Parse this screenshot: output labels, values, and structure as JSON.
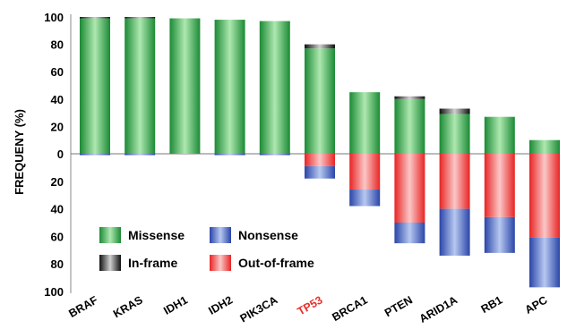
{
  "chart_data": {
    "type": "bar",
    "ylabel": "FREQUENY (%)",
    "y_tick_labels_top": [
      "100",
      "80",
      "60",
      "40",
      "20",
      "0"
    ],
    "y_tick_labels_bottom": [
      "20",
      "40",
      "60",
      "80",
      "100"
    ],
    "ylim_top": [
      0,
      100
    ],
    "ylim_bottom": [
      0,
      100
    ],
    "categories": [
      "BRAF",
      "KRAS",
      "IDH1",
      "IDH2",
      "PIK3CA",
      "TP53",
      "BRCA1",
      "PTEN",
      "ARID1A",
      "RB1",
      "APC"
    ],
    "highlight_category": "TP53",
    "highlight_color": "#e8302a",
    "series_up": [
      {
        "name": "Missense",
        "values": [
          99,
          99,
          99,
          98,
          97,
          77,
          45,
          40,
          29,
          27,
          10
        ]
      },
      {
        "name": "In-frame",
        "values": [
          1,
          1,
          0,
          0,
          0,
          3,
          0,
          2,
          4,
          0,
          0
        ]
      }
    ],
    "series_down": [
      {
        "name": "Out-of-frame",
        "values": [
          0,
          0,
          0,
          0,
          0,
          9,
          26,
          50,
          40,
          46,
          61
        ]
      },
      {
        "name": "Nonsense",
        "values": [
          1,
          1,
          0,
          1,
          1,
          9,
          12,
          15,
          34,
          26,
          36
        ]
      }
    ],
    "legend": [
      {
        "name": "Missense",
        "color": "#2fa84a"
      },
      {
        "name": "Nonsense",
        "color": "#3a5dc4"
      },
      {
        "name": "In-frame",
        "color": "#333333"
      },
      {
        "name": "Out-of-frame",
        "color": "#ec3b3b"
      }
    ],
    "legend_position": "bottom-left"
  }
}
